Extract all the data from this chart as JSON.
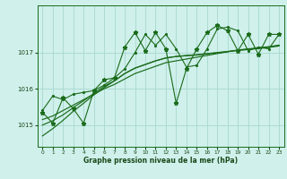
{
  "xlabel": "Graphe pression niveau de la mer (hPa)",
  "bg_color": "#cff0eb",
  "grid_color": "#a8d8d0",
  "line_color": "#1a6b1a",
  "text_color": "#1a4a1a",
  "yticks": [
    1015,
    1016,
    1017
  ],
  "ylim": [
    1014.4,
    1018.3
  ],
  "xlim": [
    -0.5,
    23.5
  ],
  "xticks": [
    0,
    1,
    2,
    3,
    4,
    5,
    6,
    7,
    8,
    9,
    10,
    11,
    12,
    13,
    14,
    15,
    16,
    17,
    18,
    19,
    20,
    21,
    22,
    23
  ],
  "spiky_series": [
    1015.35,
    1015.05,
    1015.75,
    1015.45,
    1015.05,
    1015.95,
    1016.25,
    1016.3,
    1017.15,
    1017.55,
    1017.05,
    1017.55,
    1017.1,
    1015.6,
    1016.55,
    1017.1,
    1017.55,
    1017.75,
    1017.6,
    1017.05,
    1017.5,
    1016.95,
    1017.5,
    1017.5
  ],
  "main_series": [
    1015.4,
    1015.8,
    1015.7,
    1015.85,
    1015.9,
    1015.95,
    1016.1,
    1016.3,
    1016.55,
    1017.0,
    1017.5,
    1017.2,
    1017.5,
    1017.1,
    1016.6,
    1016.65,
    1017.1,
    1017.65,
    1017.7,
    1017.6,
    1017.05,
    1017.15,
    1017.1,
    1017.5
  ],
  "smooth1": [
    1015.15,
    1015.25,
    1015.4,
    1015.55,
    1015.7,
    1015.85,
    1016.0,
    1016.12,
    1016.27,
    1016.42,
    1016.52,
    1016.62,
    1016.72,
    1016.77,
    1016.82,
    1016.87,
    1016.92,
    1016.97,
    1017.02,
    1017.07,
    1017.1,
    1017.13,
    1017.16,
    1017.2
  ],
  "smooth2": [
    1015.0,
    1015.12,
    1015.28,
    1015.48,
    1015.67,
    1015.87,
    1016.07,
    1016.22,
    1016.42,
    1016.57,
    1016.67,
    1016.77,
    1016.85,
    1016.89,
    1016.92,
    1016.94,
    1016.97,
    1017.0,
    1017.03,
    1017.06,
    1017.08,
    1017.11,
    1017.14,
    1017.18
  ],
  "smooth3": [
    1014.7,
    1014.9,
    1015.13,
    1015.38,
    1015.6,
    1015.83,
    1016.03,
    1016.22,
    1016.42,
    1016.57,
    1016.67,
    1016.77,
    1016.85,
    1016.89,
    1016.91,
    1016.93,
    1016.96,
    1016.99,
    1017.02,
    1017.06,
    1017.09,
    1017.12,
    1017.15,
    1017.2
  ]
}
